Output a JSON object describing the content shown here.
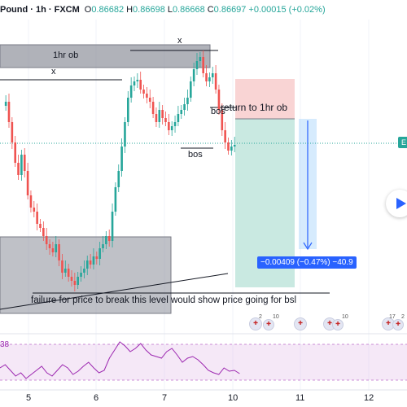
{
  "header": {
    "symbol": "Pound · 1h · FXCM",
    "o_label": "O",
    "o_value": "0.86682",
    "h_label": "H",
    "h_value": "0.86698",
    "l_label": "L",
    "l_value": "0.86668",
    "c_label": "C",
    "c_value": "0.86697",
    "change": "+0.00015 (+0.02%)"
  },
  "annotations": {
    "ob_label": "1hr ob",
    "x_top": "x",
    "x_left": "x",
    "bos_upper": "bos",
    "bos_lower": "bos",
    "return_label": "return to 1hr ob",
    "measure_label": "−0.00409 (−0.47%) −40.9",
    "failure_text": "failure for price to break this level would show price going for bsl",
    "side_tag": "E"
  },
  "rsi": {
    "value_label": "38"
  },
  "x_axis": {
    "labels": [
      "5",
      "6",
      "7",
      "10",
      "11",
      "12"
    ]
  },
  "events": {
    "count_a": "2",
    "count_b": "10",
    "count_c": "10",
    "count_d": "17",
    "count_e": "2"
  },
  "colors": {
    "up": "#26a69a",
    "down": "#ef5350",
    "accent": "#2962ff",
    "rsi": "#9c27b0"
  },
  "chart_data": {
    "type": "candlestick",
    "symbol": "Pound",
    "timeframe": "1h",
    "source": "FXCM",
    "last_close": 0.86697,
    "x_ticks": [
      "5",
      "6",
      "7",
      "10",
      "11",
      "12"
    ],
    "rsi_level": 38
  }
}
